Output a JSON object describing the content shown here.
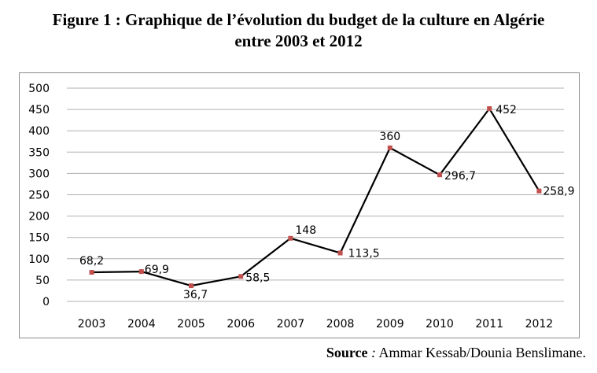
{
  "figure": {
    "title_line1": "Figure 1 : Graphique de l’évolution du budget de la culture en Algérie",
    "title_line2": "entre 2003 et 2012",
    "source_label": "Source",
    "source_sep": " :",
    "source_text": " Ammar Kessab/Dounia Benslimane."
  },
  "chart_data": {
    "type": "line",
    "title": "",
    "xlabel": "",
    "ylabel": "",
    "categories": [
      "2003",
      "2004",
      "2005",
      "2006",
      "2007",
      "2008",
      "2009",
      "2010",
      "2011",
      "2012"
    ],
    "series": [
      {
        "values": [
          68.2,
          69.9,
          36.7,
          58.5,
          148,
          113.5,
          360,
          296.7,
          452,
          258.9
        ],
        "labels": [
          "68,2",
          "69,9",
          "36,7",
          "58,5",
          "148",
          "113,5",
          "360",
          "296,7",
          "452",
          "258,9"
        ]
      }
    ],
    "yticks": [
      "0",
      "50",
      "100",
      "150",
      "200",
      "250",
      "300",
      "350",
      "400",
      "450",
      "500"
    ],
    "ylim": [
      0,
      500
    ],
    "grid": true,
    "legend": "none",
    "line_color": "#000000",
    "marker_color": "#c0504d",
    "grid_color": "#b0b0b0"
  }
}
